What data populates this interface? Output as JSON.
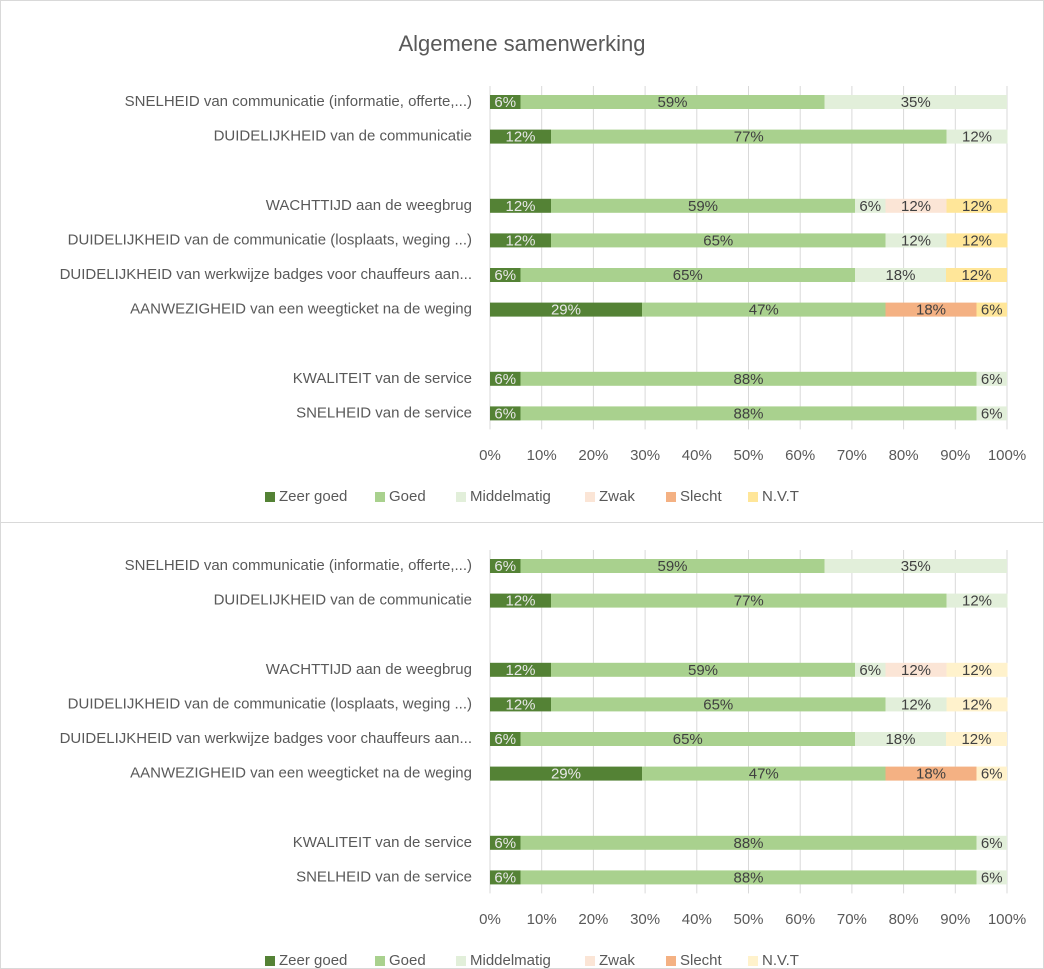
{
  "chart_data": [
    {
      "type": "bar",
      "orientation": "horizontal",
      "stacked": true,
      "title": "Algemene samenwerking",
      "categories": [
        "SNELHEID van communicatie (informatie, offerte,...)",
        "DUIDELIJKHEID van de communicatie",
        null,
        "WACHTTIJD aan de weegbrug",
        "DUIDELIJKHEID van de communicatie (losplaats, weging ...)",
        "DUIDELIJKHEID van werkwijze badges voor chauffeurs aan...",
        "AANWEZIGHEID van een weegticket na de weging",
        null,
        "KWALITEIT van de service",
        "SNELHEID  van de service"
      ],
      "series": [
        {
          "name": "Zeer goed",
          "color": "#548235",
          "values": [
            5.9,
            11.8,
            null,
            11.8,
            11.8,
            5.9,
            29.4,
            null,
            5.9,
            5.9
          ],
          "value_labels": [
            "6%",
            "12%",
            null,
            "12%",
            "12%",
            "6%",
            "29%",
            null,
            "6%",
            "6%"
          ]
        },
        {
          "name": "Goed",
          "color": "#a9d18e",
          "values": [
            58.8,
            76.5,
            null,
            58.8,
            64.7,
            64.7,
            47.1,
            null,
            88.2,
            88.2
          ],
          "value_labels": [
            "59%",
            "77%",
            null,
            "59%",
            "65%",
            "65%",
            "47%",
            null,
            "88%",
            "88%"
          ]
        },
        {
          "name": "Middelmatig",
          "color": "#e2efda",
          "values": [
            35.3,
            11.8,
            null,
            5.9,
            11.8,
            17.6,
            null,
            null,
            5.9,
            5.9
          ],
          "value_labels": [
            "35%",
            "12%",
            null,
            "6%",
            "12%",
            "18%",
            null,
            null,
            "6%",
            "6%"
          ]
        },
        {
          "name": "Zwak",
          "color": "#fbe5d6",
          "values": [
            null,
            null,
            null,
            11.8,
            null,
            null,
            null,
            null,
            null,
            null
          ],
          "value_labels": [
            null,
            null,
            null,
            "12%",
            null,
            null,
            null,
            null,
            null,
            null
          ]
        },
        {
          "name": "Slecht",
          "color": "#f4b183",
          "values": [
            null,
            null,
            null,
            null,
            null,
            null,
            17.6,
            null,
            null,
            null
          ],
          "value_labels": [
            null,
            null,
            null,
            null,
            null,
            null,
            "18%",
            null,
            null,
            null
          ]
        },
        {
          "name": "N.V.T",
          "color": "#ffe699",
          "values": [
            null,
            null,
            null,
            11.8,
            11.8,
            11.8,
            5.9,
            null,
            null,
            null
          ],
          "value_labels": [
            null,
            null,
            null,
            "12%",
            "12%",
            "12%",
            "6%",
            null,
            null,
            null
          ]
        }
      ],
      "xlim": [
        0,
        100
      ],
      "xticks": [
        {
          "value": 0,
          "label": "0%"
        },
        {
          "value": 10,
          "label": "10%"
        },
        {
          "value": 20,
          "label": "20%"
        },
        {
          "value": 30,
          "label": "30%"
        },
        {
          "value": 40,
          "label": "40%"
        },
        {
          "value": 50,
          "label": "50%"
        },
        {
          "value": 60,
          "label": "60%"
        },
        {
          "value": 70,
          "label": "70%"
        },
        {
          "value": 80,
          "label": "80%"
        },
        {
          "value": 90,
          "label": "90%"
        },
        {
          "value": 100,
          "label": "100%"
        }
      ],
      "grid": true,
      "legend": "bottom"
    },
    {
      "type": "bar",
      "orientation": "horizontal",
      "stacked": true,
      "categories": [
        "SNELHEID van communicatie (informatie, offerte,...)",
        "DUIDELIJKHEID van de communicatie",
        null,
        "WACHTTIJD aan de weegbrug",
        "DUIDELIJKHEID van de communicatie (losplaats, weging ...)",
        "DUIDELIJKHEID van werkwijze badges voor chauffeurs aan...",
        "AANWEZIGHEID van een weegticket na de weging",
        null,
        "KWALITEIT van de service",
        "SNELHEID  van de service"
      ],
      "series": [
        {
          "name": "Zeer goed",
          "color": "#548235",
          "values": [
            5.9,
            11.8,
            null,
            11.8,
            11.8,
            5.9,
            29.4,
            null,
            5.9,
            5.9
          ],
          "value_labels": [
            "6%",
            "12%",
            null,
            "12%",
            "12%",
            "6%",
            "29%",
            null,
            "6%",
            "6%"
          ]
        },
        {
          "name": "Goed",
          "color": "#a9d18e",
          "values": [
            58.8,
            76.5,
            null,
            58.8,
            64.7,
            64.7,
            47.1,
            null,
            88.2,
            88.2
          ],
          "value_labels": [
            "59%",
            "77%",
            null,
            "59%",
            "65%",
            "65%",
            "47%",
            null,
            "88%",
            "88%"
          ]
        },
        {
          "name": "Middelmatig",
          "color": "#e2efda",
          "values": [
            35.3,
            11.8,
            null,
            5.9,
            11.8,
            17.6,
            null,
            null,
            5.9,
            5.9
          ],
          "value_labels": [
            "35%",
            "12%",
            null,
            "6%",
            "12%",
            "18%",
            null,
            null,
            "6%",
            "6%"
          ]
        },
        {
          "name": "Zwak",
          "color": "#fbe5d6",
          "values": [
            null,
            null,
            null,
            11.8,
            null,
            null,
            null,
            null,
            null,
            null
          ],
          "value_labels": [
            null,
            null,
            null,
            "12%",
            null,
            null,
            null,
            null,
            null,
            null
          ]
        },
        {
          "name": "Slecht",
          "color": "#f4b183",
          "values": [
            null,
            null,
            null,
            null,
            null,
            null,
            17.6,
            null,
            null,
            null
          ],
          "value_labels": [
            null,
            null,
            null,
            null,
            null,
            null,
            "18%",
            null,
            null,
            null
          ]
        },
        {
          "name": "N.V.T",
          "color": "#fff2cc",
          "values": [
            null,
            null,
            null,
            11.8,
            11.8,
            11.8,
            5.9,
            null,
            null,
            null
          ],
          "value_labels": [
            null,
            null,
            null,
            "12%",
            "12%",
            "12%",
            "6%",
            null,
            null,
            null
          ]
        }
      ],
      "xlim": [
        0,
        100
      ],
      "xticks": [
        {
          "value": 0,
          "label": "0%"
        },
        {
          "value": 10,
          "label": "10%"
        },
        {
          "value": 20,
          "label": "20%"
        },
        {
          "value": 30,
          "label": "30%"
        },
        {
          "value": 40,
          "label": "40%"
        },
        {
          "value": 50,
          "label": "50%"
        },
        {
          "value": 60,
          "label": "60%"
        },
        {
          "value": 70,
          "label": "70%"
        },
        {
          "value": 80,
          "label": "80%"
        },
        {
          "value": 90,
          "label": "90%"
        },
        {
          "value": 100,
          "label": "100%"
        }
      ],
      "grid": true,
      "legend": "bottom"
    }
  ]
}
